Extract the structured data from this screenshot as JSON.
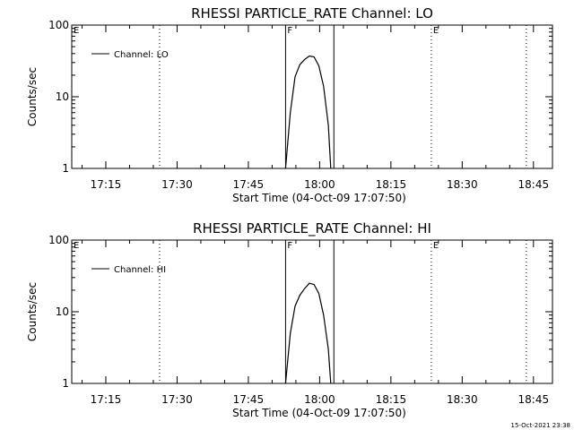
{
  "chart_data": [
    {
      "type": "line",
      "title": "RHESSI PARTICLE_RATE Channel: LO",
      "xlabel": "Start Time (04-Oct-09 17:07:50)",
      "ylabel": "Counts/sec",
      "yscale": "log",
      "ylim": [
        1,
        100
      ],
      "xlim": [
        "17:07:50",
        "18:49:00"
      ],
      "y_ticks": [
        "1",
        "10",
        "100"
      ],
      "x_ticks": [
        "17:15",
        "17:30",
        "17:45",
        "18:00",
        "18:15",
        "18:30",
        "18:45"
      ],
      "legend": "top-left",
      "grid": false,
      "series": [
        {
          "name": "Channel: LO",
          "x": [
            "17:52:50",
            "17:53:50",
            "17:54:50",
            "17:55:50",
            "17:56:50",
            "17:57:50",
            "17:58:50",
            "17:59:50",
            "18:00:50",
            "18:01:50",
            "18:02:20"
          ],
          "y": [
            1,
            6,
            19,
            28,
            33,
            37,
            36,
            27,
            14,
            4,
            1
          ]
        }
      ],
      "markers": [
        {
          "time": "17:07:50",
          "label": "E",
          "style": "dotted"
        },
        {
          "time": "17:26:20",
          "label": "",
          "style": "dotted"
        },
        {
          "time": "17:52:50",
          "label": "F",
          "style": "solid"
        },
        {
          "time": "18:03:00",
          "label": "",
          "style": "solid"
        },
        {
          "time": "18:23:30",
          "label": "E",
          "style": "dotted"
        },
        {
          "time": "18:43:30",
          "label": "",
          "style": "dotted"
        }
      ]
    },
    {
      "type": "line",
      "title": "RHESSI PARTICLE_RATE Channel: HI",
      "xlabel": "Start Time (04-Oct-09 17:07:50)",
      "ylabel": "Counts/sec",
      "yscale": "log",
      "ylim": [
        1,
        100
      ],
      "xlim": [
        "17:07:50",
        "18:49:00"
      ],
      "y_ticks": [
        "1",
        "10",
        "100"
      ],
      "x_ticks": [
        "17:15",
        "17:30",
        "17:45",
        "18:00",
        "18:15",
        "18:30",
        "18:45"
      ],
      "legend": "top-left",
      "grid": false,
      "series": [
        {
          "name": "Channel: HI",
          "x": [
            "17:52:50",
            "17:53:50",
            "17:54:50",
            "17:55:50",
            "17:56:50",
            "17:57:50",
            "17:58:50",
            "17:59:50",
            "18:00:50",
            "18:01:50",
            "18:02:20"
          ],
          "y": [
            1,
            5,
            12,
            17,
            21,
            25,
            24,
            18,
            9,
            3,
            1
          ]
        }
      ],
      "markers": [
        {
          "time": "17:07:50",
          "label": "E",
          "style": "dotted"
        },
        {
          "time": "17:26:20",
          "label": "",
          "style": "dotted"
        },
        {
          "time": "17:52:50",
          "label": "F",
          "style": "solid"
        },
        {
          "time": "18:03:00",
          "label": "",
          "style": "solid"
        },
        {
          "time": "18:23:30",
          "label": "E",
          "style": "dotted"
        },
        {
          "time": "18:43:30",
          "label": "",
          "style": "dotted"
        }
      ]
    }
  ],
  "footer": {
    "timestamp": "15-Oct-2021 23:38"
  }
}
